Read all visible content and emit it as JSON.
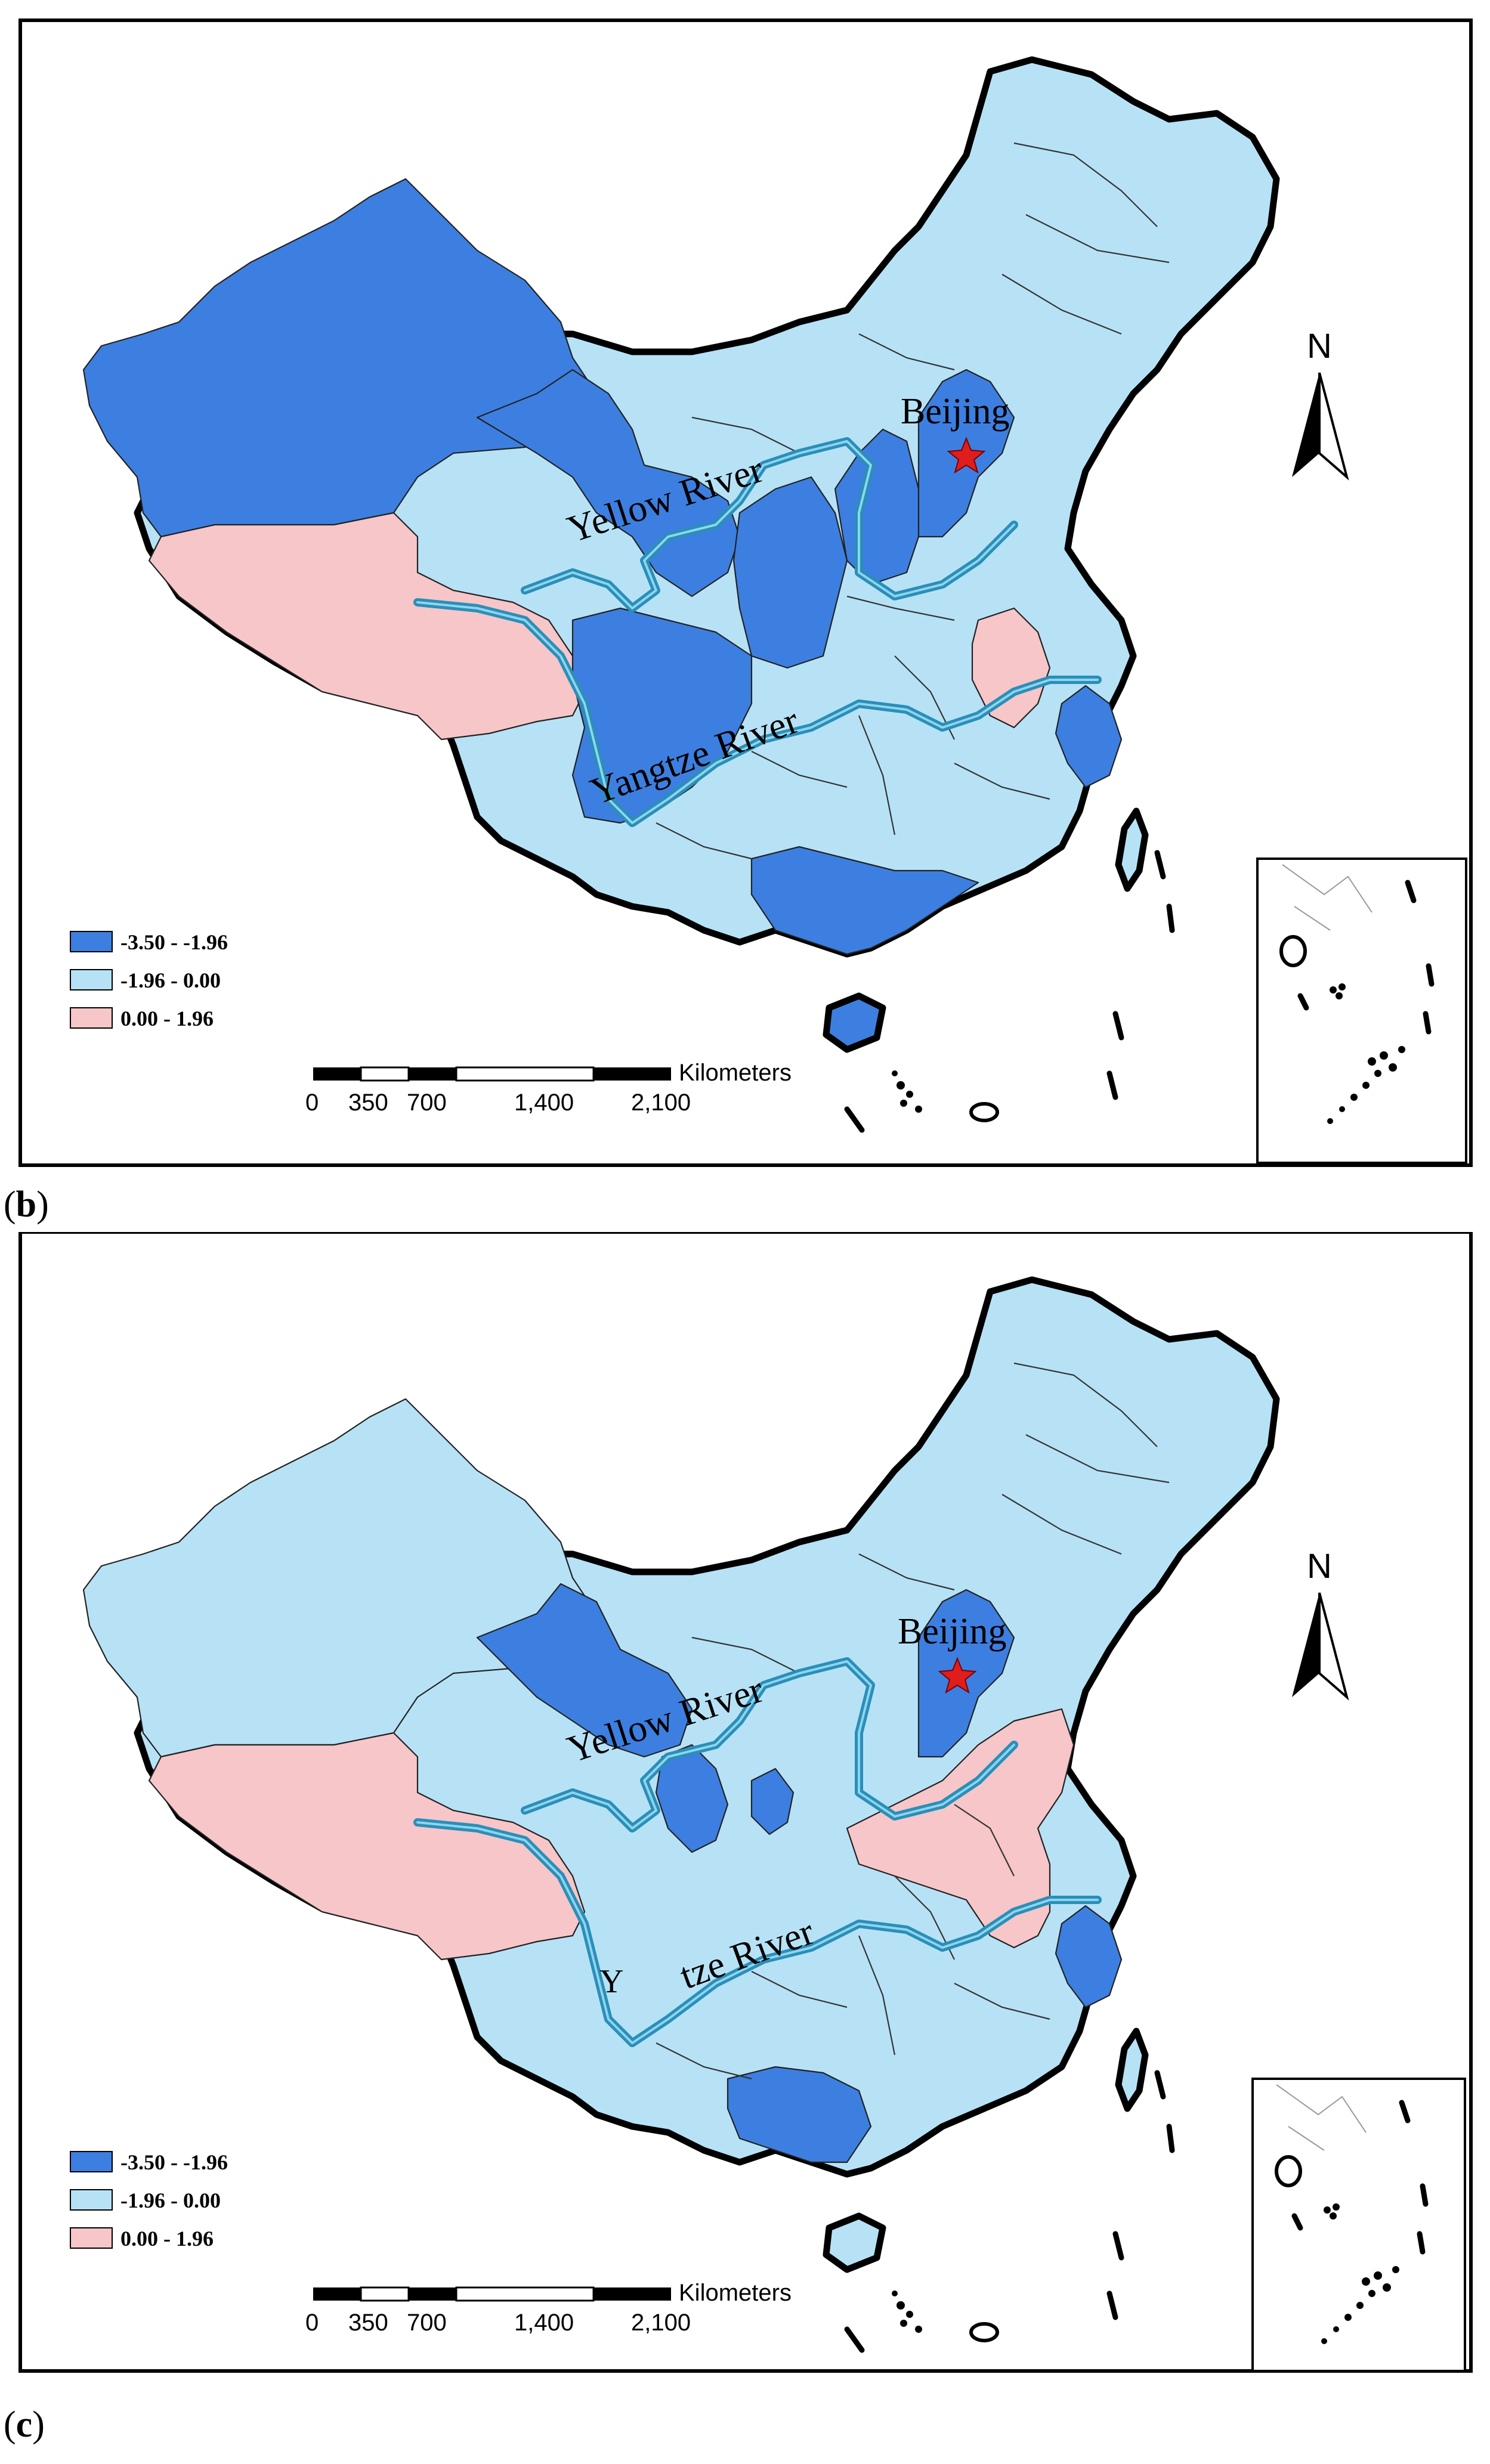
{
  "panels": [
    {
      "caption": "(b)",
      "caption_letter": "b",
      "legend": [
        {
          "label": "-3.50 - -1.96",
          "color": "#3d7fe0"
        },
        {
          "label": "-1.96 - 0.00",
          "color": "#b7e2f6"
        },
        {
          "label": "0.00 - 1.96",
          "color": "#f7c6c9"
        }
      ],
      "city": "Beijing",
      "rivers": {
        "yellow": "Yellow River",
        "yangtze": "Yangtze River"
      },
      "north": "N",
      "scale": {
        "unit": "Kilometers",
        "ticks": [
          "0",
          "350",
          "700",
          "1,400",
          "2,100"
        ]
      }
    },
    {
      "caption": "(c)",
      "caption_letter": "c",
      "legend": [
        {
          "label": "-3.50 - -1.96",
          "color": "#3d7fe0"
        },
        {
          "label": "-1.96 - 0.00",
          "color": "#b7e2f6"
        },
        {
          "label": "0.00 - 1.96",
          "color": "#f7c6c9"
        }
      ],
      "city": "Beijing",
      "rivers": {
        "yellow": "Yellow River",
        "yangtze": "tze River",
        "yangtze_fragment": "Y"
      },
      "north": "N",
      "scale": {
        "unit": "Kilometers",
        "ticks": [
          "0",
          "350",
          "700",
          "1,400",
          "2,100"
        ]
      }
    }
  ],
  "colors": {
    "dark_blue": "#3d7fe0",
    "light_blue": "#b7e2f6",
    "pink": "#f7c6c9",
    "river": "#2a8fb8"
  }
}
